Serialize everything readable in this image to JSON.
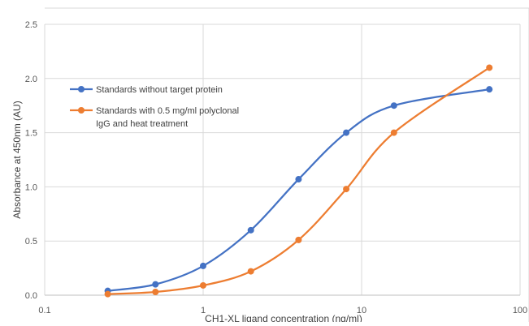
{
  "chart_data": {
    "type": "line",
    "title": "",
    "xlabel": "CH1-XL ligand concentration (ng/ml)",
    "ylabel": "Absorbance at 450nm (AU)",
    "xscale": "log",
    "xlim": [
      0.1,
      100
    ],
    "ylim": [
      0,
      2.5
    ],
    "x_ticks": [
      0.1,
      1,
      10,
      100
    ],
    "x_tick_labels": [
      "0.1",
      "1",
      "10",
      "100"
    ],
    "y_ticks": [
      0,
      0.5,
      1,
      1.5,
      2,
      2.5
    ],
    "y_tick_labels": [
      "0.0",
      "0.5",
      "1.0",
      "1.5",
      "2.0",
      "2.5"
    ],
    "grid": "horizontal",
    "legend_position": "upper-left",
    "series": [
      {
        "name": "Standards without target protein",
        "color": "#4472C4",
        "x": [
          0.25,
          0.5,
          1,
          2,
          4,
          8,
          16,
          64
        ],
        "y": [
          0.04,
          0.1,
          0.27,
          0.6,
          1.07,
          1.5,
          1.75,
          1.9
        ]
      },
      {
        "name": "Standards with 0.5 mg/ml polyclonal IgG and heat treatment",
        "legend_lines": [
          "Standards with 0.5 mg/ml polyclonal",
          "IgG and heat treatment"
        ],
        "color": "#ED7D31",
        "x": [
          0.25,
          0.5,
          1,
          2,
          4,
          8,
          16,
          64
        ],
        "y": [
          0.01,
          0.03,
          0.09,
          0.22,
          0.51,
          0.98,
          1.5,
          2.1
        ]
      }
    ]
  }
}
